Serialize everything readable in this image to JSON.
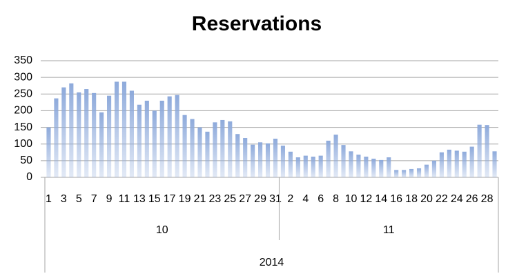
{
  "chart_data": {
    "type": "bar",
    "title": "Reservations",
    "category_groups": [
      {
        "label": "10",
        "categories": [
          1,
          null,
          3,
          null,
          5,
          null,
          7,
          null,
          9,
          null,
          11,
          null,
          13,
          null,
          15,
          null,
          17,
          null,
          19,
          null,
          21,
          null,
          23,
          null,
          25,
          null,
          27,
          null,
          29,
          null,
          31
        ]
      },
      {
        "label": "11",
        "categories": [
          null,
          2,
          null,
          4,
          null,
          6,
          null,
          8,
          null,
          10,
          null,
          12,
          null,
          14,
          null,
          16,
          null,
          18,
          null,
          20,
          null,
          22,
          null,
          24,
          null,
          26,
          null,
          28,
          null
        ]
      }
    ],
    "super_category": "2014",
    "values": [
      150,
      237,
      270,
      282,
      255,
      265,
      253,
      195,
      245,
      287,
      287,
      260,
      218,
      230,
      200,
      230,
      243,
      247,
      187,
      175,
      150,
      137,
      165,
      172,
      168,
      130,
      118,
      98,
      105,
      102,
      116,
      95,
      77,
      60,
      65,
      62,
      65,
      110,
      128,
      97,
      78,
      68,
      62,
      56,
      52,
      60,
      22,
      22,
      25,
      27,
      38,
      50,
      75,
      83,
      80,
      77,
      92,
      158,
      157,
      78
    ],
    "color": "#8eaadb",
    "ylim": [
      0,
      350
    ],
    "yticks": [
      0,
      50,
      100,
      150,
      200,
      250,
      300,
      350
    ],
    "grid": true
  }
}
